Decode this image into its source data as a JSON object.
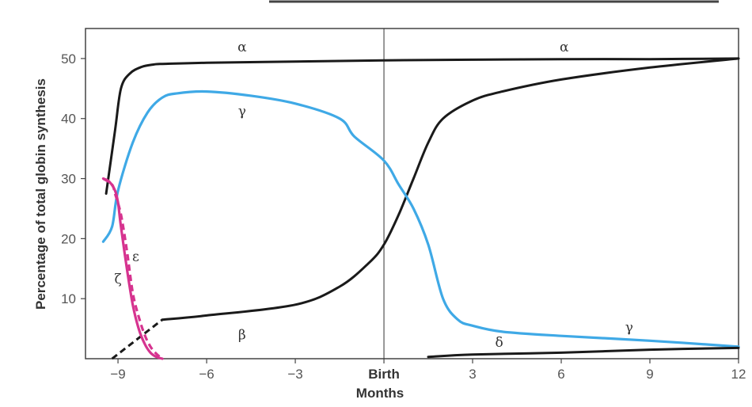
{
  "chart_data": {
    "type": "line",
    "title": "",
    "xlabel": "Months",
    "ylabel": "Percentage of total globin synthesis",
    "xlim": [
      -10.1,
      12
    ],
    "ylim": [
      0,
      55
    ],
    "x_ticks": [
      -9,
      -6,
      -3,
      0,
      3,
      6,
      9,
      12
    ],
    "x_tick_labels": [
      "−9",
      "−6",
      "−3",
      "Birth",
      "3",
      "6",
      "9",
      "12"
    ],
    "y_ticks": [
      10,
      20,
      30,
      40,
      50
    ],
    "y_tick_labels": [
      "10",
      "20",
      "30",
      "40",
      "50"
    ],
    "grid": false,
    "reference_line": {
      "x": 0,
      "label": "Birth"
    },
    "colors": {
      "alpha": "#1a1a1a",
      "beta": "#1a1a1a",
      "gamma": "#3fa9e6",
      "delta": "#1a1a1a",
      "epsilon": "#d6338f",
      "zeta": "#d6338f"
    },
    "series": [
      {
        "name": "α",
        "color": "#1a1a1a",
        "x": [
          -9.4,
          -9.1,
          -8.9,
          -8.6,
          -8.2,
          -7.8,
          -7.5,
          -6,
          -3,
          0,
          3,
          6,
          9,
          12
        ],
        "y": [
          27.5,
          38,
          45,
          47.5,
          48.6,
          49,
          49.1,
          49.3,
          49.5,
          49.7,
          49.8,
          49.9,
          49.9,
          50
        ]
      },
      {
        "name": "β",
        "color": "#1a1a1a",
        "x": [
          -7.5,
          -6,
          -3,
          -1.5,
          -0.5,
          0,
          0.5,
          1,
          1.5,
          2,
          3,
          4,
          6,
          9,
          12
        ],
        "y": [
          6.5,
          7.2,
          9,
          12,
          16,
          19,
          24,
          30,
          36,
          40,
          43,
          44.5,
          46.5,
          48.5,
          50
        ]
      },
      {
        "name": "β (early)",
        "dashed": true,
        "color": "#1a1a1a",
        "x": [
          -9.2,
          -7.5
        ],
        "y": [
          0,
          6.5
        ]
      },
      {
        "name": "γ",
        "color": "#3fa9e6",
        "x": [
          -9.5,
          -9.2,
          -9,
          -8.5,
          -8,
          -7.5,
          -7,
          -6,
          -4.5,
          -3,
          -1.5,
          -1,
          0,
          0.5,
          1,
          1.5,
          2,
          2.5,
          3,
          4,
          6,
          9,
          12
        ],
        "y": [
          19.5,
          22,
          28,
          36,
          41,
          43.5,
          44.2,
          44.5,
          43.8,
          42.5,
          40,
          37,
          33,
          29,
          25,
          19,
          10,
          6.5,
          5.5,
          4.5,
          3.8,
          3,
          2
        ]
      },
      {
        "name": "δ",
        "color": "#1a1a1a",
        "x": [
          1.5,
          3,
          6,
          9,
          12
        ],
        "y": [
          0.3,
          0.7,
          1,
          1.5,
          1.8
        ]
      },
      {
        "name": "ε",
        "dashed": true,
        "color": "#d6338f",
        "x": [
          -9.5,
          -9.2,
          -9.1,
          -8.9,
          -8.7,
          -8.5,
          -8.3,
          -8.1,
          -7.9,
          -7.7,
          -7.5
        ],
        "y": [
          30,
          29,
          27.5,
          24,
          18,
          11,
          7,
          4,
          2,
          0.8,
          0
        ]
      },
      {
        "name": "ζ",
        "color": "#d6338f",
        "x": [
          -9.5,
          -9.3,
          -9.1,
          -9,
          -8.9,
          -8.7,
          -8.5,
          -8.3,
          -8.1,
          -7.9,
          -7.7,
          -7.5
        ],
        "y": [
          30,
          29.5,
          28,
          26,
          22,
          15,
          9,
          5,
          2.5,
          1,
          0.3,
          0
        ]
      }
    ],
    "annotations": [
      {
        "text": "α",
        "series": "α",
        "x": -4.8,
        "y": 51.2
      },
      {
        "text": "α",
        "series": "α",
        "x": 6.1,
        "y": 51.2
      },
      {
        "text": "γ",
        "series": "γ",
        "x": -4.8,
        "y": 40.5
      },
      {
        "text": "γ",
        "series": "γ",
        "x": 8.3,
        "y": 4.5
      },
      {
        "text": "β",
        "series": "β",
        "x": -4.8,
        "y": 3.2
      },
      {
        "text": "δ",
        "series": "δ",
        "x": 3.9,
        "y": 2
      },
      {
        "text": "ε",
        "series": "ε",
        "x": -8.4,
        "y": 16.3
      },
      {
        "text": "ζ",
        "series": "ζ",
        "x": -9.0,
        "y": 12.5
      }
    ]
  }
}
